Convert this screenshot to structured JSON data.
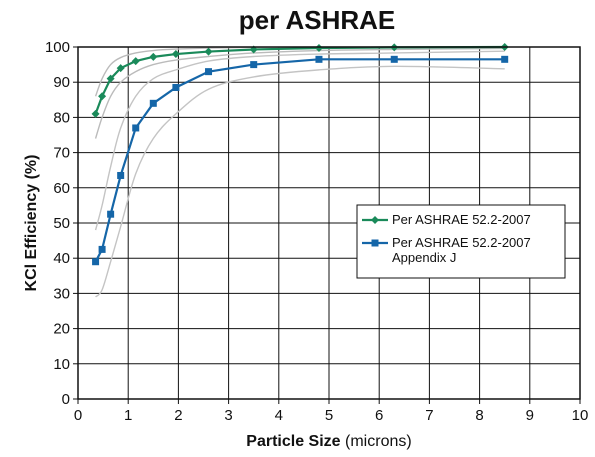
{
  "chart_data": {
    "type": "line",
    "title": "per ASHRAE",
    "xlabel_bold": "Particle Size",
    "xlabel_rest": " (microns)",
    "ylabel": "KCl Efficiency (%)",
    "xlim": [
      0,
      10
    ],
    "ylim": [
      0,
      100
    ],
    "x_ticks": [
      "0",
      "1",
      "2",
      "3",
      "4",
      "5",
      "6",
      "7",
      "8",
      "9",
      "10"
    ],
    "y_ticks": [
      "0",
      "10",
      "20",
      "30",
      "40",
      "50",
      "60",
      "70",
      "80",
      "90",
      "100"
    ],
    "grid": true,
    "legend_position": "center-right",
    "series": [
      {
        "name": "Per ASHRAE 52.2-2007",
        "color": "#1a8a5a",
        "marker": "diamond",
        "x": [
          0.35,
          0.48,
          0.65,
          0.85,
          1.15,
          1.5,
          1.95,
          2.6,
          3.5,
          4.8,
          6.3,
          8.5
        ],
        "y": [
          81,
          86,
          91,
          94,
          96,
          97.2,
          98,
          98.7,
          99.3,
          99.7,
          99.9,
          100
        ]
      },
      {
        "name": "Per ASHRAE 52.2-2007 Appendix J",
        "name_lines": [
          "Per ASHRAE 52.2-2007",
          "Appendix J"
        ],
        "color": "#1566a8",
        "marker": "square",
        "x": [
          0.35,
          0.48,
          0.65,
          0.85,
          1.15,
          1.5,
          1.95,
          2.6,
          3.5,
          4.8,
          6.3,
          8.5
        ],
        "y": [
          39,
          42.5,
          52.5,
          63.5,
          77,
          84,
          88.5,
          93,
          95,
          96.5,
          96.5,
          96.5
        ]
      }
    ],
    "bands": [
      {
        "series": 0,
        "color": "#bbbbbb",
        "upper": [
          86,
          91,
          95,
          97,
          98.3,
          99,
          99.4,
          99.7,
          99.9,
          100,
          100,
          100
        ],
        "lower": [
          74,
          80,
          86,
          90,
          93,
          95,
          96.3,
          97.3,
          98.3,
          99,
          99.3,
          99.6
        ]
      },
      {
        "series": 1,
        "color": "#c4c4c4",
        "upper": [
          48,
          55,
          66,
          77,
          86,
          91,
          93.5,
          96,
          97.3,
          98,
          98.3,
          98.8
        ],
        "lower": [
          29,
          31,
          39,
          49,
          64,
          74,
          81,
          88,
          91.5,
          93.5,
          94.5,
          93.8
        ]
      }
    ]
  }
}
